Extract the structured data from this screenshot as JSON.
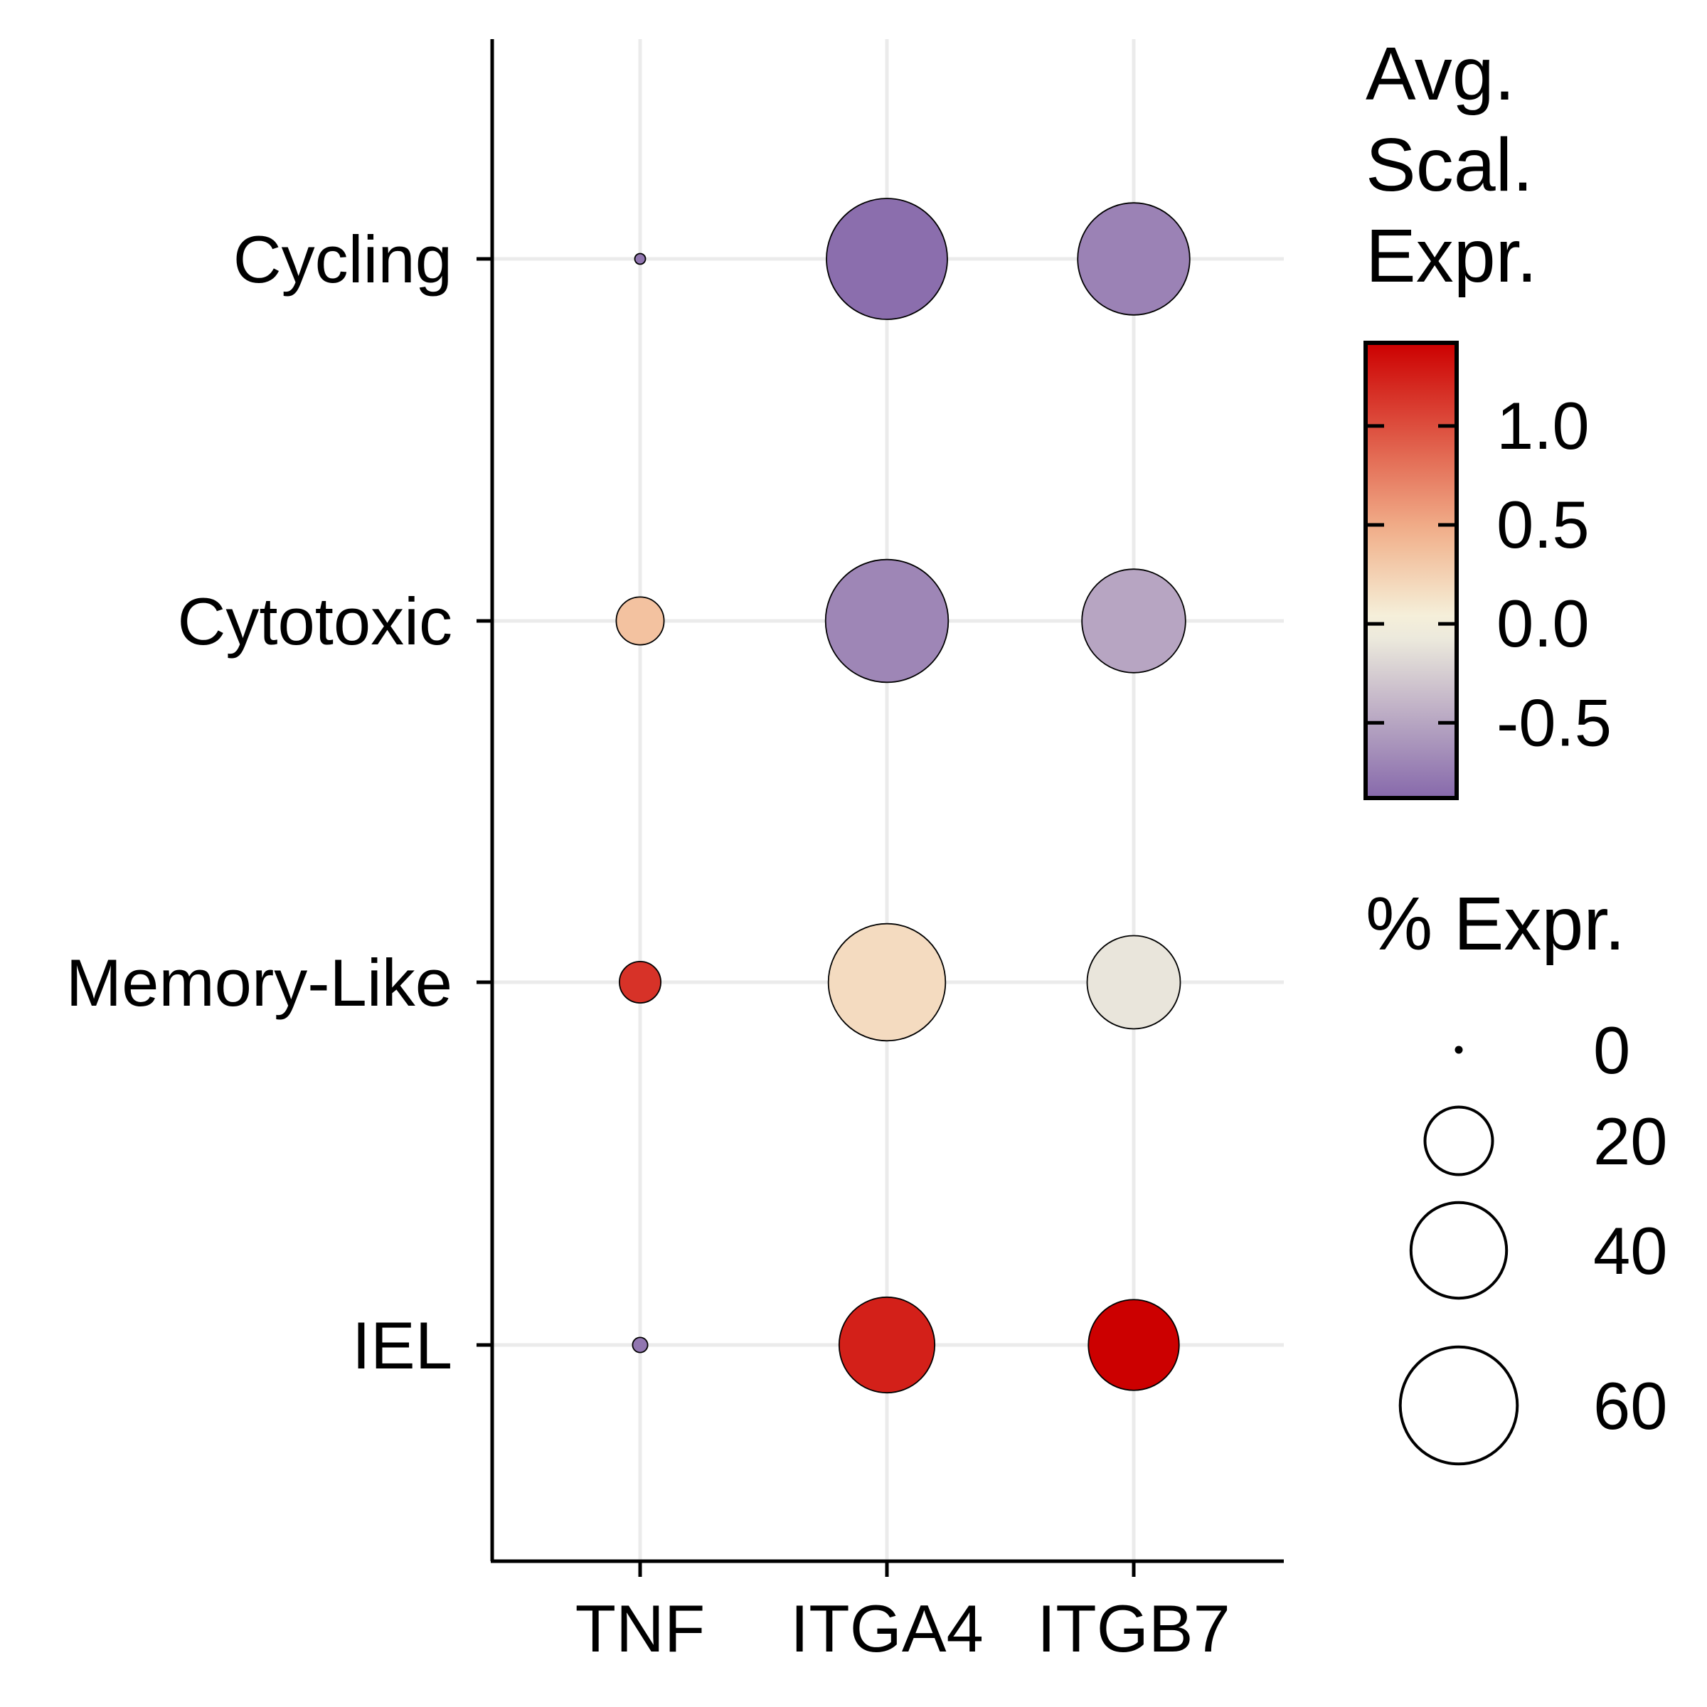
{
  "chart_data": {
    "type": "dot",
    "x_categories": [
      "TNF",
      "ITGA4",
      "ITGB7"
    ],
    "y_categories": [
      "Cycling",
      "Cytotoxic",
      "Memory-Like",
      "IEL"
    ],
    "xlabel": "",
    "ylabel": "",
    "grid": true,
    "points": [
      {
        "x": "TNF",
        "y": "Cycling",
        "pct_expr": 0.5,
        "avg_scaled_expr": -0.8
      },
      {
        "x": "ITGA4",
        "y": "Cycling",
        "pct_expr": 64,
        "avg_scaled_expr": -0.85
      },
      {
        "x": "ITGB7",
        "y": "Cycling",
        "pct_expr": 55,
        "avg_scaled_expr": -0.72
      },
      {
        "x": "TNF",
        "y": "Cytotoxic",
        "pct_expr": 10,
        "avg_scaled_expr": 0.35
      },
      {
        "x": "ITGA4",
        "y": "Cytotoxic",
        "pct_expr": 66,
        "avg_scaled_expr": -0.7
      },
      {
        "x": "ITGB7",
        "y": "Cytotoxic",
        "pct_expr": 47,
        "avg_scaled_expr": -0.5
      },
      {
        "x": "TNF",
        "y": "Memory-Like",
        "pct_expr": 7.5,
        "avg_scaled_expr": 1.15
      },
      {
        "x": "ITGA4",
        "y": "Memory-Like",
        "pct_expr": 60,
        "avg_scaled_expr": 0.18
      },
      {
        "x": "ITGB7",
        "y": "Memory-Like",
        "pct_expr": 38,
        "avg_scaled_expr": -0.1
      },
      {
        "x": "TNF",
        "y": "IEL",
        "pct_expr": 1,
        "avg_scaled_expr": -0.8
      },
      {
        "x": "ITGA4",
        "y": "IEL",
        "pct_expr": 40,
        "avg_scaled_expr": 1.25
      },
      {
        "x": "ITGB7",
        "y": "IEL",
        "pct_expr": 36,
        "avg_scaled_expr": 1.42
      }
    ],
    "color_legend": {
      "title": [
        "Avg.",
        "Scal.",
        "Expr."
      ],
      "min": -0.88,
      "max": 1.42,
      "ticks": [
        1.0,
        0.5,
        0.0,
        -0.5
      ],
      "tick_labels": [
        "1.0",
        "0.5",
        "0.0",
        "-0.5"
      ],
      "colors": {
        "low": "#8769AB",
        "mid": "#F5F5E1",
        "high": "#CC0000"
      }
    },
    "size_legend": {
      "title": "% Expr.",
      "values": [
        0,
        20,
        40,
        60
      ],
      "labels": [
        "0",
        "20",
        "40",
        "60"
      ]
    }
  }
}
